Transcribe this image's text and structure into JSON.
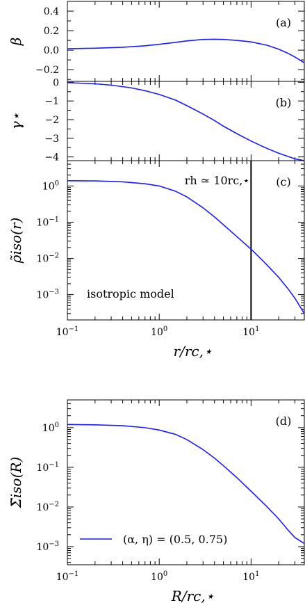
{
  "chart_data": [
    {
      "type": "line",
      "panel": "(a)",
      "ylabel": "β",
      "xscale": "log",
      "xlim": [
        0.1,
        38
      ],
      "ylim": [
        -0.32,
        0.5
      ],
      "yticks": [
        0.4,
        0.2,
        0.0,
        -0.2
      ],
      "ytick_labels": [
        "0.4",
        "0.2",
        "0.0",
        "−0.2"
      ],
      "series": [
        {
          "color": "#1a1aff",
          "x": [
            0.1,
            0.2,
            0.4,
            0.7,
            1.0,
            1.5,
            2.0,
            3.0,
            4.0,
            5.0,
            7.0,
            10.0,
            15.0,
            20.0,
            25.0,
            30.0,
            38.0
          ],
          "y": [
            0.015,
            0.02,
            0.03,
            0.045,
            0.06,
            0.08,
            0.095,
            0.11,
            0.112,
            0.11,
            0.1,
            0.085,
            0.05,
            0.01,
            -0.03,
            -0.07,
            -0.13
          ]
        }
      ]
    },
    {
      "type": "line",
      "panel": "(b)",
      "ylabel": "γ⋆",
      "xscale": "log",
      "xlim": [
        0.1,
        38
      ],
      "ylim": [
        -4.2,
        0.05
      ],
      "yticks": [
        0,
        -1,
        -2,
        -3,
        -4
      ],
      "ytick_labels": [
        "0",
        "−1",
        "−2",
        "−3",
        "−4"
      ],
      "series": [
        {
          "color": "#1a1aff",
          "x": [
            0.1,
            0.2,
            0.3,
            0.5,
            0.7,
            1.0,
            1.5,
            2.0,
            3.0,
            4.0,
            5.0,
            7.0,
            10.0,
            15.0,
            20.0,
            30.0,
            38.0
          ],
          "y": [
            -0.02,
            -0.08,
            -0.15,
            -0.3,
            -0.45,
            -0.65,
            -0.95,
            -1.25,
            -1.7,
            -2.05,
            -2.35,
            -2.75,
            -3.15,
            -3.55,
            -3.8,
            -4.1,
            -4.2
          ]
        }
      ]
    },
    {
      "type": "line",
      "panel": "(c)",
      "ylabel": "ρ̃iso(r)",
      "xlabel": "r/rc,⋆",
      "xscale": "log",
      "yscale": "log",
      "xlim": [
        0.1,
        38
      ],
      "ylim": [
        0.0002,
        5
      ],
      "xticks": [
        0.1,
        1,
        10
      ],
      "xtick_labels": [
        [
          "10",
          "−1"
        ],
        [
          "10",
          "0"
        ],
        [
          "10",
          "1"
        ]
      ],
      "yticks": [
        1,
        0.1,
        0.01,
        0.001
      ],
      "ytick_labels": [
        [
          "10",
          "0"
        ],
        [
          "10",
          "−1"
        ],
        [
          "10",
          "−2"
        ],
        [
          "10",
          "−3"
        ]
      ],
      "vline": {
        "x": 10,
        "label": "rh ≃ 10rc,⋆"
      },
      "annotation": "isotropic model",
      "series": [
        {
          "color": "#1a1aff",
          "x": [
            0.1,
            0.2,
            0.4,
            0.7,
            1.0,
            1.5,
            2.0,
            3.0,
            4.0,
            5.0,
            7.0,
            10.0,
            15.0,
            20.0,
            25.0,
            30.0,
            38.0
          ],
          "y": [
            1.4,
            1.38,
            1.3,
            1.15,
            1.0,
            0.72,
            0.5,
            0.25,
            0.14,
            0.085,
            0.04,
            0.018,
            0.0065,
            0.003,
            0.0015,
            0.0008,
            0.0003
          ]
        }
      ]
    },
    {
      "type": "line",
      "panel": "(d)",
      "ylabel": "Σ̃iso(R)",
      "xlabel": "R/rc,⋆",
      "xscale": "log",
      "yscale": "log",
      "xlim": [
        0.1,
        38
      ],
      "ylim": [
        0.00035,
        5
      ],
      "xticks": [
        0.1,
        1,
        10
      ],
      "xtick_labels": [
        [
          "10",
          "−1"
        ],
        [
          "10",
          "0"
        ],
        [
          "10",
          "1"
        ]
      ],
      "yticks": [
        1,
        0.1,
        0.01,
        0.001
      ],
      "ytick_labels": [
        [
          "10",
          "0"
        ],
        [
          "10",
          "−1"
        ],
        [
          "10",
          "−2"
        ],
        [
          "10",
          "−3"
        ]
      ],
      "legend": "bottom-left",
      "series": [
        {
          "name": "(α, η) = (0.5, 0.75)",
          "color": "#1a1aff",
          "x": [
            0.1,
            0.2,
            0.4,
            0.7,
            1.0,
            1.5,
            2.0,
            3.0,
            4.0,
            5.0,
            7.0,
            10.0,
            15.0,
            20.0,
            25.0,
            30.0,
            38.0
          ],
          "y": [
            1.2,
            1.18,
            1.12,
            1.0,
            0.87,
            0.68,
            0.5,
            0.28,
            0.17,
            0.11,
            0.055,
            0.025,
            0.01,
            0.005,
            0.0027,
            0.0017,
            0.0012
          ]
        }
      ]
    }
  ]
}
